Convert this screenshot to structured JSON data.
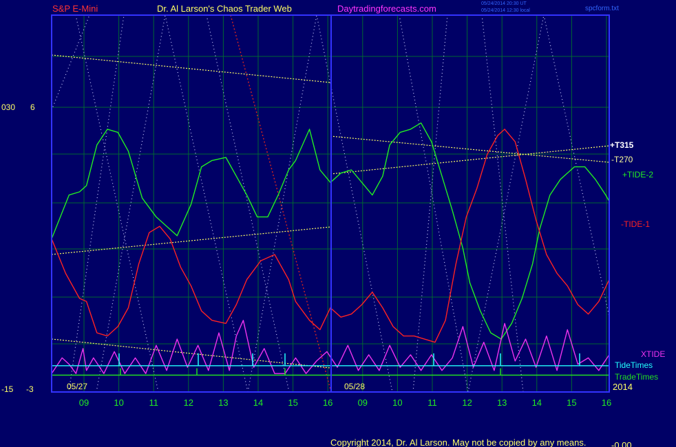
{
  "header": {
    "symbol": "S&P E-Mini",
    "author": "Dr. Al Larson's Chaos Trader Web",
    "site": "Daytradingforecasts.com",
    "stamp_line1": "05/24/2014 20:30 UT",
    "stamp_line2": "05/24/2014 12:30 local",
    "file": "spcform.txt"
  },
  "footer": {
    "copyright": "Copyright 2014, Dr. Al Larson. May not be copied by any means.",
    "corner": "-0.00"
  },
  "left_axis": {
    "top_a": "030",
    "top_b": "6",
    "bottom_a": "-15",
    "bottom_b": "-3"
  },
  "dates": [
    "05/27",
    "05/28"
  ],
  "year": "2014",
  "colors": {
    "background": "#000066",
    "frame": "#3333ff",
    "grid": "#006633",
    "tide1": "#ff2222",
    "tide2": "#22ee22",
    "xtide": "#ee33ee",
    "tidetimes": "#22ffff",
    "tradetimes": "#22dd22",
    "trend": "#ffff66",
    "dotted_white": "#ccccff",
    "dotted_red": "#cc2222"
  },
  "chart_data": {
    "type": "line",
    "x_ticks": [
      "09",
      "10",
      "11",
      "12",
      "13",
      "14",
      "15",
      "16",
      "09",
      "10",
      "11",
      "12",
      "13",
      "14",
      "15",
      "16"
    ],
    "y_range": [
      -3,
      6
    ],
    "series": [
      {
        "name": "+TIDE-2",
        "color": "#22ee22",
        "x": [
          0,
          0.5,
          0.8,
          1,
          1.3,
          1.6,
          1.9,
          2.2,
          2.6,
          3,
          3.3,
          3.6,
          4,
          4.3,
          4.6,
          5,
          5.3,
          5.6,
          5.9,
          6.2,
          6.5,
          6.8,
          7,
          7.4,
          7.7,
          8,
          8.3,
          8.6,
          8.9,
          9.2,
          9.5,
          9.7,
          10,
          10.3,
          10.6,
          10.9,
          11.2,
          11.5,
          11.8,
          12,
          12.3,
          12.6,
          12.9,
          13.2,
          13.5,
          13.8,
          14,
          14.3,
          14.6,
          15,
          15.3,
          15.6,
          15.9,
          16
        ],
        "y": [
          1.8,
          3.2,
          3.3,
          3.5,
          4.8,
          5.3,
          5.2,
          4.6,
          3.1,
          2.5,
          2.2,
          1.9,
          2.9,
          4.1,
          4.3,
          4.4,
          3.8,
          3.2,
          2.5,
          2.5,
          3.2,
          4,
          4.3,
          5.3,
          4.0,
          3.6,
          3.9,
          4.0,
          3.6,
          3.2,
          3.8,
          4.8,
          5.2,
          5.3,
          5.5,
          4.9,
          3.8,
          2.7,
          1.5,
          0.4,
          -0.5,
          -1.2,
          -1.4,
          -0.9,
          -0.1,
          1.0,
          2.1,
          3.2,
          3.7,
          4.1,
          4.1,
          3.7,
          3.2,
          3.0
        ]
      },
      {
        "name": "-TIDE-1",
        "color": "#ff2222",
        "x": [
          0,
          0.4,
          0.8,
          1,
          1.3,
          1.6,
          1.9,
          2.2,
          2.5,
          2.8,
          3.1,
          3.4,
          3.7,
          4,
          4.3,
          4.6,
          5,
          5.3,
          5.6,
          6,
          6.4,
          6.8,
          7,
          7.4,
          7.7,
          8,
          8.3,
          8.6,
          8.9,
          9.2,
          9.5,
          9.8,
          10.1,
          10.4,
          10.7,
          11,
          11.3,
          11.6,
          11.9,
          12.2,
          12.5,
          12.8,
          13,
          13.3,
          13.6,
          13.9,
          14.2,
          14.5,
          14.8,
          15.1,
          15.4,
          15.7,
          16
        ],
        "y": [
          1.8,
          0.7,
          -0.1,
          -0.2,
          -1.2,
          -1.3,
          -1.0,
          -0.4,
          1.0,
          2,
          2.2,
          1.8,
          0.9,
          0.3,
          -0.5,
          -0.8,
          -0.9,
          -0.3,
          0.5,
          1.1,
          1.3,
          0.5,
          -0.2,
          -0.8,
          -1.1,
          -0.4,
          -0.7,
          -0.6,
          -0.3,
          0.1,
          -0.4,
          -1.0,
          -1.3,
          -1.3,
          -1.4,
          -1.5,
          -0.8,
          1.0,
          2.5,
          3.4,
          4.5,
          5.1,
          5.3,
          4.9,
          3.7,
          2.4,
          1.3,
          0.7,
          0.3,
          -0.3,
          -0.6,
          -0.2,
          0.5
        ]
      },
      {
        "name": "XTIDE",
        "color": "#ee33ee",
        "x": [
          0,
          0.3,
          0.5,
          0.7,
          0.9,
          1,
          1.2,
          1.5,
          1.8,
          2.1,
          2.4,
          2.7,
          3,
          3.3,
          3.6,
          3.9,
          4.2,
          4.5,
          4.8,
          5.1,
          5.3,
          5.5,
          5.8,
          6.1,
          6.4,
          6.7,
          7,
          7.3,
          7.6,
          7.9,
          8.2,
          8.5,
          8.8,
          9.1,
          9.4,
          9.7,
          10,
          10.3,
          10.6,
          10.9,
          11.2,
          11.5,
          11.8,
          12.1,
          12.4,
          12.7,
          13,
          13.3,
          13.6,
          13.9,
          14.2,
          14.5,
          14.8,
          15.1,
          15.4,
          15.7,
          16
        ],
        "y": [
          -2.5,
          -2.0,
          -2.2,
          -2.5,
          -1.7,
          -2.4,
          -2.0,
          -2.5,
          -1.8,
          -2.5,
          -2.0,
          -2.5,
          -1.6,
          -2.4,
          -1.4,
          -2.3,
          -1.6,
          -2.4,
          -1.2,
          -2.4,
          -1.3,
          -0.8,
          -2.3,
          -1.7,
          -2.5,
          -2.5,
          -2.0,
          -2.5,
          -2.1,
          -1.8,
          -2.3,
          -1.6,
          -2.4,
          -1.9,
          -2.4,
          -1.6,
          -2.3,
          -1.9,
          -2.4,
          -1.9,
          -2.4,
          -2.0,
          -1.0,
          -2.3,
          -1.5,
          -2.4,
          -0.9,
          -2.1,
          -1.4,
          -2.3,
          -1.3,
          -2.4,
          -1.1,
          -2.2,
          -2.0,
          -2.4,
          -1.9
        ]
      },
      {
        "name": "TideTimes",
        "color": "#22ffff",
        "x": [
          0,
          16
        ],
        "y": [
          -2.25,
          -2.25
        ]
      },
      {
        "name": "TradeTimes",
        "color": "#22dd22",
        "x": [
          0,
          16
        ],
        "y": [
          -2.55,
          -2.55
        ]
      }
    ],
    "annotations": [
      "+T315",
      "-T270",
      "+TIDE-2",
      "-TIDE-1",
      "XTIDE",
      "TideTimes",
      "TradeTimes"
    ]
  }
}
